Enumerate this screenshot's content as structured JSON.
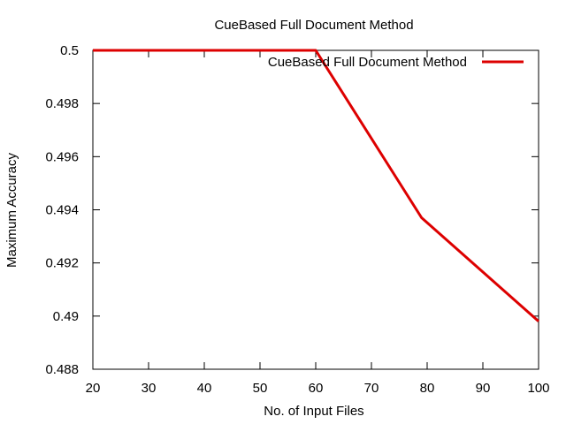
{
  "chart_data": {
    "type": "line",
    "title": "CueBased Full Document Method",
    "xlabel": "No. of Input Files",
    "ylabel": "Maximum Accuracy",
    "xlim": [
      20,
      100
    ],
    "ylim": [
      0.488,
      0.5
    ],
    "xticks": [
      20,
      30,
      40,
      50,
      60,
      70,
      80,
      90,
      100
    ],
    "yticks": [
      "0.488",
      "0.49",
      "0.492",
      "0.494",
      "0.496",
      "0.498",
      "0.5"
    ],
    "grid": false,
    "legend_position": "top-right",
    "series": [
      {
        "name": "CueBased Full Document Method",
        "color": "#dd0000",
        "x": [
          20,
          30,
          40,
          50,
          60,
          79,
          100
        ],
        "y": [
          0.5,
          0.5,
          0.5,
          0.5,
          0.5,
          0.4937,
          0.4898
        ]
      }
    ]
  }
}
